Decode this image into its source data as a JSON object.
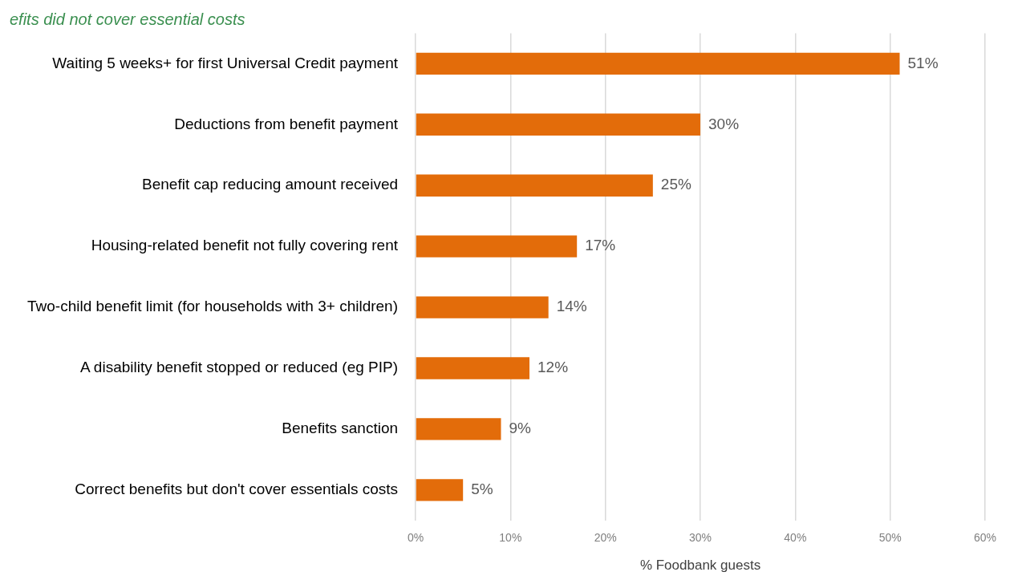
{
  "chart_data": {
    "type": "bar",
    "orientation": "horizontal",
    "title": "efits did not cover essential costs",
    "xlabel": "% Foodbank guests",
    "categories": [
      "Waiting 5 weeks+ for first Universal Credit payment",
      "Deductions from benefit payment",
      "Benefit cap reducing amount received",
      "Housing-related benefit not fully covering rent",
      "Two-child benefit limit (for households with 3+ children)",
      "A disability benefit stopped or reduced (eg PIP)",
      "Benefits sanction",
      "Correct benefits but don't cover essentials costs"
    ],
    "values": [
      51,
      30,
      25,
      17,
      14,
      12,
      9,
      5
    ],
    "value_labels": [
      "51%",
      "30%",
      "25%",
      "17%",
      "14%",
      "12%",
      "9%",
      "5%"
    ],
    "color": "#e36c0a",
    "xlim": [
      0,
      60
    ],
    "xticks": [
      {
        "value": 0,
        "label": "0%"
      },
      {
        "value": 10,
        "label": "10%"
      },
      {
        "value": 20,
        "label": "20%"
      },
      {
        "value": 30,
        "label": "30%"
      },
      {
        "value": 40,
        "label": "40%"
      },
      {
        "value": 50,
        "label": "50%"
      },
      {
        "value": 60,
        "label": "60%"
      }
    ],
    "grid": "x",
    "legend": false
  }
}
